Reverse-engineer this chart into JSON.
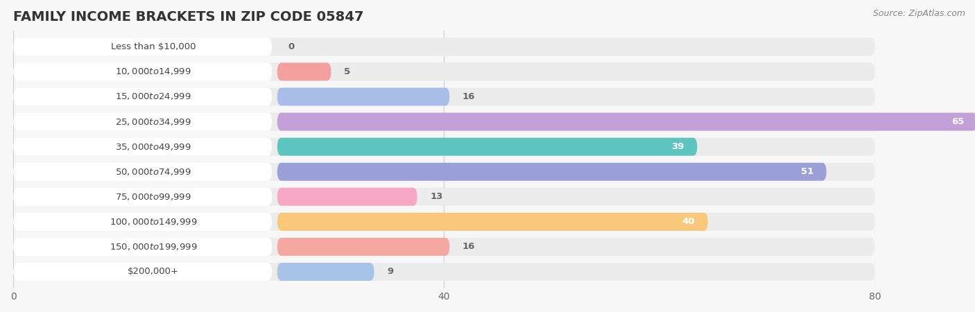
{
  "title": "FAMILY INCOME BRACKETS IN ZIP CODE 05847",
  "source": "Source: ZipAtlas.com",
  "categories": [
    "Less than $10,000",
    "$10,000 to $14,999",
    "$15,000 to $24,999",
    "$25,000 to $34,999",
    "$35,000 to $49,999",
    "$50,000 to $74,999",
    "$75,000 to $99,999",
    "$100,000 to $149,999",
    "$150,000 to $199,999",
    "$200,000+"
  ],
  "values": [
    0,
    5,
    16,
    65,
    39,
    51,
    13,
    40,
    16,
    9
  ],
  "bar_colors": [
    "#F9C48A",
    "#F4A0A0",
    "#A8BEE8",
    "#C3A0D8",
    "#5EC4C0",
    "#9B9FD8",
    "#F7A8C4",
    "#F9C87A",
    "#F4A8A0",
    "#A8C4E8"
  ],
  "label_colors": {
    "inside": "#ffffff",
    "outside": "#666666"
  },
  "xlim": [
    0,
    80
  ],
  "xticks": [
    0,
    40,
    80
  ],
  "background_color": "#f7f7f7",
  "row_bg_color": "#ececec",
  "title_fontsize": 14,
  "label_fontsize": 9.5,
  "value_fontsize": 9.5,
  "inside_threshold": 18
}
